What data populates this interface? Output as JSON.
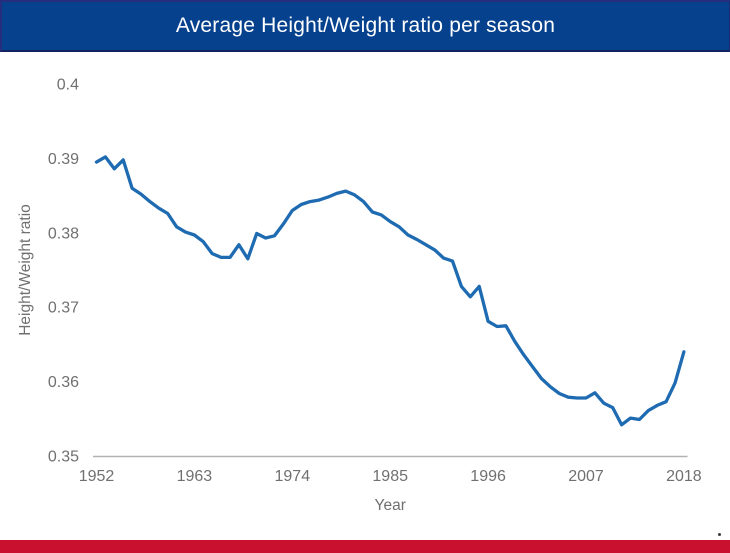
{
  "header": {
    "title": "Average Height/Weight ratio per season"
  },
  "chart_data": {
    "type": "line",
    "title": "Average Height/Weight ratio per season",
    "xlabel": "Year",
    "ylabel": "Height/Weight ratio",
    "xlim": [
      1952,
      2018
    ],
    "ylim": [
      0.35,
      0.4
    ],
    "grid": false,
    "legend": false,
    "xticks": [
      1952,
      1963,
      1974,
      1985,
      1996,
      2007,
      2018
    ],
    "yticks": [
      0.4,
      0.39,
      0.38,
      0.37,
      0.36,
      0.35
    ],
    "x": [
      1952,
      1953,
      1954,
      1955,
      1956,
      1957,
      1958,
      1959,
      1960,
      1961,
      1962,
      1963,
      1964,
      1965,
      1966,
      1967,
      1968,
      1969,
      1970,
      1971,
      1972,
      1973,
      1974,
      1975,
      1976,
      1977,
      1978,
      1979,
      1980,
      1981,
      1982,
      1983,
      1984,
      1985,
      1986,
      1987,
      1988,
      1989,
      1990,
      1991,
      1992,
      1993,
      1994,
      1995,
      1996,
      1997,
      1998,
      1999,
      2000,
      2001,
      2002,
      2003,
      2004,
      2005,
      2006,
      2007,
      2008,
      2009,
      2010,
      2011,
      2012,
      2013,
      2014,
      2015,
      2016,
      2017,
      2018
    ],
    "series": [
      {
        "name": "Average Height/Weight ratio",
        "values": [
          0.3895,
          0.3902,
          0.3886,
          0.3898,
          0.386,
          0.3852,
          0.3842,
          0.3833,
          0.3826,
          0.3808,
          0.3801,
          0.3797,
          0.3788,
          0.3772,
          0.3767,
          0.3767,
          0.3784,
          0.3765,
          0.3799,
          0.3793,
          0.3796,
          0.3812,
          0.383,
          0.3838,
          0.3842,
          0.3844,
          0.3848,
          0.3853,
          0.3856,
          0.3851,
          0.3842,
          0.3828,
          0.3824,
          0.3815,
          0.3808,
          0.3797,
          0.3791,
          0.3784,
          0.3777,
          0.3766,
          0.3762,
          0.3728,
          0.3714,
          0.3728,
          0.3681,
          0.3674,
          0.3675,
          0.3654,
          0.3636,
          0.362,
          0.3604,
          0.3593,
          0.3584,
          0.3579,
          0.3578,
          0.3578,
          0.3585,
          0.3571,
          0.3565,
          0.3542,
          0.3551,
          0.3549,
          0.3561,
          0.3568,
          0.3573,
          0.3598,
          0.364
        ]
      }
    ]
  },
  "colors": {
    "header_bg": "#06418d",
    "title_text": "#ffffff",
    "line": "#1e6bb2",
    "axis_line": "#b2b2b2",
    "tick_text": "#707070",
    "footer_bar": "#c9112f"
  }
}
